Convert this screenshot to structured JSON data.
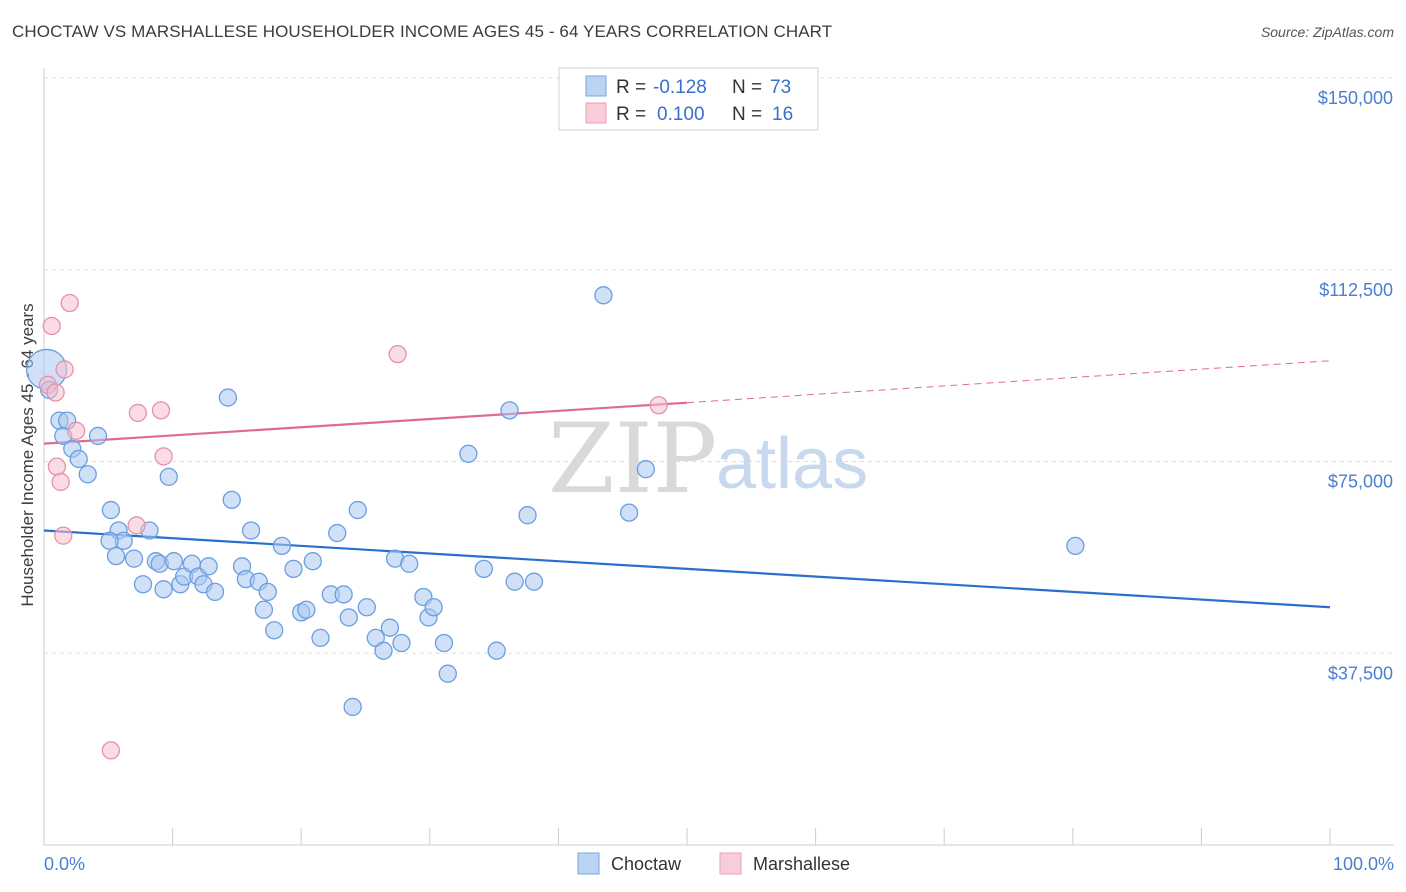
{
  "title": "CHOCTAW VS MARSHALLESE HOUSEHOLDER INCOME AGES 45 - 64 YEARS CORRELATION CHART",
  "source": "Source: ZipAtlas.com",
  "watermark": {
    "zip": "ZIP",
    "atlas": "atlas"
  },
  "legend": {
    "rows": [
      {
        "r_label": "R =",
        "r_value": "-0.128",
        "n_label": "N =",
        "n_value": "73"
      },
      {
        "r_label": "R =",
        "r_value": "0.100",
        "n_label": "N =",
        "n_value": "16"
      }
    ]
  },
  "bottom_legend": [
    "Choctaw",
    "Marshallese"
  ],
  "colors": {
    "choctaw_fill": "#a9c8f0",
    "choctaw_stroke": "#6a9ee0",
    "choctaw_line": "#2a6fce",
    "marshallese_fill": "#f6c0d0",
    "marshallese_stroke": "#e890aa",
    "marshallese_line": "#e06a90",
    "tick_label": "#4a7fd0",
    "grid": "#dddddd"
  },
  "chart_data": {
    "type": "scatter",
    "ylabel": "Householder Income Ages 45 - 64 years",
    "xlabel": "",
    "x_tick_labels": [
      "0.0%",
      "100.0%"
    ],
    "y_tick_labels": [
      "$150,000",
      "$112,500",
      "$75,000",
      "$37,500"
    ],
    "y_ticks": [
      150000,
      112500,
      75000,
      37500
    ],
    "xlim": [
      0,
      100
    ],
    "ylim": [
      0,
      155000
    ],
    "grid": true,
    "series": [
      {
        "name": "Choctaw",
        "points": [
          [
            0.2,
            93000,
            "big"
          ],
          [
            0.4,
            89000
          ],
          [
            1.2,
            83000
          ],
          [
            1.5,
            80000
          ],
          [
            1.8,
            83000
          ],
          [
            2.2,
            77500
          ],
          [
            2.7,
            75500
          ],
          [
            3.4,
            72500
          ],
          [
            4.2,
            80000
          ],
          [
            5.2,
            65500
          ],
          [
            5.8,
            61500
          ],
          [
            6.2,
            59500
          ],
          [
            5.1,
            59500
          ],
          [
            5.6,
            56500
          ],
          [
            7.0,
            56000
          ],
          [
            7.7,
            51000
          ],
          [
            8.2,
            61500
          ],
          [
            8.7,
            55500
          ],
          [
            9.0,
            55000
          ],
          [
            9.3,
            50000
          ],
          [
            9.7,
            72000
          ],
          [
            10.1,
            55500
          ],
          [
            10.6,
            51000
          ],
          [
            10.9,
            52500
          ],
          [
            11.5,
            55000
          ],
          [
            12.0,
            52500
          ],
          [
            12.4,
            51000
          ],
          [
            12.8,
            54500
          ],
          [
            13.3,
            49500
          ],
          [
            14.3,
            87500
          ],
          [
            14.6,
            67500
          ],
          [
            15.4,
            54500
          ],
          [
            15.7,
            52000
          ],
          [
            16.1,
            61500
          ],
          [
            16.7,
            51500
          ],
          [
            17.1,
            46000
          ],
          [
            17.4,
            49500
          ],
          [
            17.9,
            42000
          ],
          [
            18.5,
            58500
          ],
          [
            19.4,
            54000
          ],
          [
            20.0,
            45500
          ],
          [
            20.4,
            46000
          ],
          [
            20.9,
            55500
          ],
          [
            21.5,
            40500
          ],
          [
            22.3,
            49000
          ],
          [
            22.8,
            61000
          ],
          [
            23.3,
            49000
          ],
          [
            23.7,
            44500
          ],
          [
            24.0,
            27000
          ],
          [
            24.4,
            65500
          ],
          [
            25.1,
            46500
          ],
          [
            25.8,
            40500
          ],
          [
            26.4,
            38000
          ],
          [
            26.9,
            42500
          ],
          [
            27.3,
            56000
          ],
          [
            27.8,
            39500
          ],
          [
            28.4,
            55000
          ],
          [
            29.5,
            48500
          ],
          [
            29.9,
            44500
          ],
          [
            30.3,
            46500
          ],
          [
            31.1,
            39500
          ],
          [
            31.4,
            33500
          ],
          [
            33.0,
            76500
          ],
          [
            34.2,
            54000
          ],
          [
            35.2,
            38000
          ],
          [
            36.2,
            85000
          ],
          [
            36.6,
            51500
          ],
          [
            37.6,
            64500
          ],
          [
            38.1,
            51500
          ],
          [
            43.5,
            107500
          ],
          [
            45.5,
            65000
          ],
          [
            46.8,
            73500
          ],
          [
            80.2,
            58500
          ]
        ]
      },
      {
        "name": "Marshallese",
        "points": [
          [
            0.3,
            90000
          ],
          [
            0.6,
            101500
          ],
          [
            0.9,
            88500
          ],
          [
            1.0,
            74000
          ],
          [
            1.3,
            71000
          ],
          [
            1.5,
            60500
          ],
          [
            1.6,
            93000
          ],
          [
            2.0,
            106000
          ],
          [
            2.5,
            81000
          ],
          [
            7.2,
            62500
          ],
          [
            7.3,
            84500
          ],
          [
            9.1,
            85000
          ],
          [
            9.3,
            76000
          ],
          [
            5.2,
            18500
          ],
          [
            27.5,
            96000
          ],
          [
            47.8,
            86000
          ]
        ]
      }
    ],
    "trendlines": [
      {
        "series": "Choctaw",
        "x_start": 0,
        "y_start": 61500,
        "x_end": 100,
        "y_end": 46500,
        "style": "solid"
      },
      {
        "series": "Marshallese",
        "x_start": 0,
        "y_start": 78500,
        "x_end": 50,
        "y_end": 86500,
        "style": "solid"
      },
      {
        "series": "Marshallese",
        "x_start": 50,
        "y_start": 86500,
        "x_end": 100,
        "y_end": 94700,
        "style": "dashed"
      }
    ]
  }
}
